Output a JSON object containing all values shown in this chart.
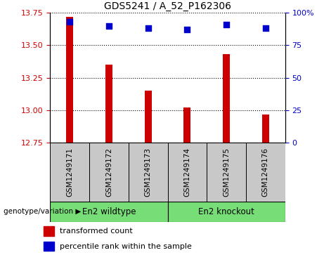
{
  "title": "GDS5241 / A_52_P162306",
  "samples": [
    "GSM1249171",
    "GSM1249172",
    "GSM1249173",
    "GSM1249174",
    "GSM1249175",
    "GSM1249176"
  ],
  "transformed_count": [
    13.72,
    13.35,
    13.15,
    13.02,
    13.43,
    12.97
  ],
  "percentile_rank": [
    93,
    90,
    88,
    87,
    91,
    88
  ],
  "ylim_left": [
    12.75,
    13.75
  ],
  "ylim_right": [
    0,
    100
  ],
  "yticks_left": [
    12.75,
    13.0,
    13.25,
    13.5,
    13.75
  ],
  "yticks_right": [
    0,
    25,
    50,
    75,
    100
  ],
  "bar_color": "#cc0000",
  "dot_color": "#0000cc",
  "grid_color": "#000000",
  "group1_label": "En2 wildtype",
  "group2_label": "En2 knockout",
  "group1_indices": [
    0,
    1,
    2
  ],
  "group2_indices": [
    3,
    4,
    5
  ],
  "group_color": "#77dd77",
  "genotype_label": "genotype/variation",
  "legend1": "transformed count",
  "legend2": "percentile rank within the sample",
  "sample_bg_color": "#c8c8c8",
  "plot_bg_color": "#ffffff",
  "bar_width": 0.18,
  "dot_size": 30,
  "fig_width": 4.61,
  "fig_height": 3.63
}
